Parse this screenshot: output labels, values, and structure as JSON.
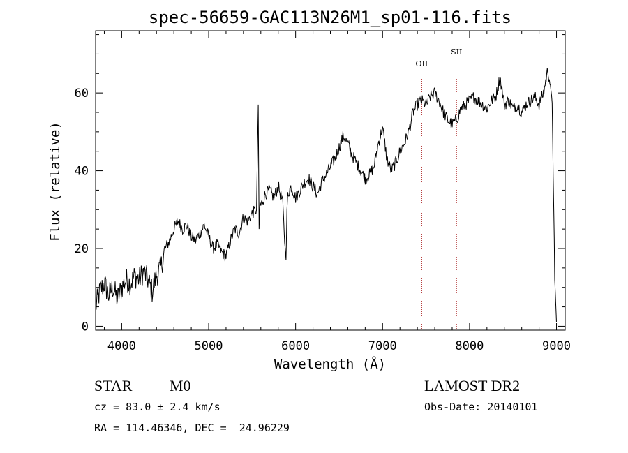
{
  "chart_data": {
    "type": "line",
    "title": "spec-56659-GAC113N26M1_sp01-116.fits",
    "xlabel": "Wavelength (Å)",
    "ylabel": "Flux (relative)",
    "xlim": [
      3700,
      9100
    ],
    "ylim": [
      -1,
      76
    ],
    "xticks": [
      4000,
      5000,
      6000,
      7000,
      8000,
      9000
    ],
    "yticks": [
      0,
      20,
      40,
      60
    ],
    "grid": false,
    "line_color": "#000000",
    "marker_color": "#aa2222",
    "series": [
      {
        "x": [
          3700,
          3750,
          3800,
          3850,
          3900,
          3950,
          4000,
          4050,
          4100,
          4150,
          4200,
          4250,
          4300,
          4350,
          4400,
          4450,
          4500,
          4550,
          4600,
          4650,
          4700,
          4750,
          4800,
          4850,
          4900,
          4950,
          5000,
          5050,
          5100,
          5150,
          5200,
          5250,
          5300,
          5350,
          5400,
          5450,
          5500,
          5550,
          5570,
          5580,
          5590,
          5600,
          5650,
          5700,
          5750,
          5800,
          5850,
          5880,
          5890,
          5900,
          5910,
          5950,
          6000,
          6050,
          6100,
          6150,
          6200,
          6250,
          6300,
          6350,
          6400,
          6450,
          6500,
          6550,
          6600,
          6650,
          6700,
          6750,
          6800,
          6850,
          6900,
          6950,
          7000,
          7050,
          7100,
          7150,
          7200,
          7250,
          7300,
          7350,
          7400,
          7450,
          7500,
          7550,
          7600,
          7650,
          7700,
          7750,
          7800,
          7850,
          7900,
          7950,
          8000,
          8050,
          8100,
          8150,
          8200,
          8250,
          8300,
          8350,
          8400,
          8450,
          8500,
          8550,
          8600,
          8650,
          8700,
          8750,
          8800,
          8850,
          8900,
          8930,
          8950,
          8980,
          9000
        ],
        "y": [
          5,
          9,
          11,
          8,
          10,
          7,
          10,
          12,
          11,
          13,
          12,
          14,
          12,
          9,
          13,
          15,
          20,
          22,
          25,
          27,
          25,
          26,
          23,
          22,
          24,
          26,
          23,
          20,
          21,
          19,
          18,
          22,
          25,
          24,
          28,
          27,
          29,
          30,
          57,
          25,
          32,
          31,
          34,
          35,
          33,
          36,
          32,
          20,
          17,
          30,
          34,
          36,
          33,
          35,
          37,
          38,
          36,
          34,
          37,
          39,
          41,
          43,
          46,
          49,
          47,
          44,
          42,
          40,
          38,
          39,
          41,
          47,
          51,
          43,
          40,
          42,
          45,
          47,
          50,
          55,
          57,
          58,
          57,
          59,
          60,
          58,
          55,
          53,
          52,
          53,
          56,
          57,
          58,
          59,
          58,
          57,
          56,
          58,
          59,
          64,
          57,
          58,
          56,
          57,
          55,
          57,
          58,
          59,
          57,
          60,
          66,
          62,
          58,
          12,
          1
        ]
      }
    ],
    "marker_lines": [
      {
        "label": "OII",
        "x": 7450
      },
      {
        "label": "SII",
        "x": 7850
      }
    ],
    "info": {
      "object_type": "STAR",
      "subclass": "M0",
      "cz": "cz = 83.0 ± 2.4 km/s",
      "coords": "RA = 114.46346, DEC =  24.96229",
      "survey": "LAMOST DR2",
      "obs_date": "Obs-Date: 20140101"
    }
  }
}
